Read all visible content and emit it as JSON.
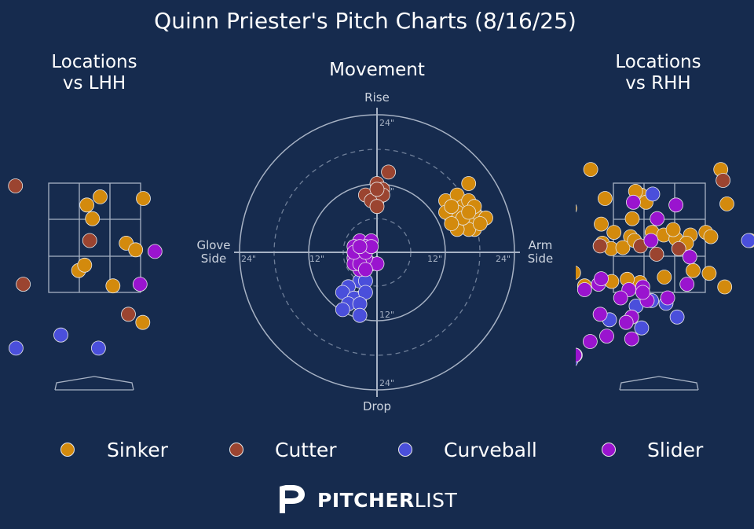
{
  "title": "Quinn Priester's Pitch Charts (8/16/25)",
  "panels": {
    "lhh_title": "Locations\nvs LHH",
    "movement_title": "Movement",
    "rhh_title": "Locations\nvs RHH"
  },
  "movement_axes": {
    "top": "Rise",
    "bottom": "Drop",
    "left": "Glove\nSide",
    "right": "Arm\nSide",
    "tick_labels": [
      "24\"",
      "12\"",
      "12\"",
      "24\"",
      "24\"",
      "12\"",
      "12\"",
      "24\""
    ]
  },
  "colors": {
    "background": "#162b4e",
    "Sinker": "#d38a0d",
    "Cutter": "#9b4430",
    "Curveball": "#4a4fdb",
    "Slider": "#9a14cf"
  },
  "legend": [
    {
      "label": "Sinker",
      "color": "#d38a0d"
    },
    {
      "label": "Cutter",
      "color": "#9b4430"
    },
    {
      "label": "Curveball",
      "color": "#4a4fdb"
    },
    {
      "label": "Slider",
      "color": "#9a14cf"
    }
  ],
  "brand": {
    "bold": "PITCHER",
    "light": "LIST",
    "logo_icon": "pitcherlist-logo-icon"
  },
  "chart_data": [
    {
      "type": "scatter",
      "name": "Locations vs LHH",
      "note": "plate location, x in feet from center (catcher view), z in feet",
      "xlim": [
        -2.0,
        2.0
      ],
      "ylim": [
        0.0,
        5.0
      ],
      "points": {
        "Sinker": [
          [
            0.1,
            3.25
          ],
          [
            0.88,
            3.22
          ],
          [
            -0.04,
            2.85
          ],
          [
            -0.14,
            3.1
          ],
          [
            0.57,
            2.4
          ],
          [
            0.74,
            2.28
          ],
          [
            -0.29,
            1.9
          ],
          [
            -0.18,
            2.0
          ],
          [
            0.33,
            1.62
          ],
          [
            0.87,
            0.95
          ]
        ],
        "Cutter": [
          [
            -1.43,
            3.45
          ],
          [
            -0.09,
            2.45
          ],
          [
            -1.29,
            1.65
          ],
          [
            0.61,
            1.1
          ]
        ],
        "Curveball": [
          [
            -0.61,
            0.72
          ],
          [
            -1.42,
            0.48
          ],
          [
            0.07,
            0.48
          ]
        ],
        "Slider": [
          [
            1.09,
            2.25
          ],
          [
            0.82,
            1.65
          ]
        ]
      }
    },
    {
      "type": "scatter",
      "name": "Movement",
      "note": "horizontal break (arm side +) and induced vertical break, inches",
      "xlim": [
        -24,
        24
      ],
      "ylim": [
        -24,
        24
      ],
      "points": {
        "Sinker": [
          [
            16,
            12
          ],
          [
            12,
            9
          ],
          [
            14,
            10
          ],
          [
            15,
            8
          ],
          [
            17,
            7
          ],
          [
            16,
            9
          ],
          [
            18,
            6
          ],
          [
            13,
            6
          ],
          [
            14,
            7
          ],
          [
            15,
            5
          ],
          [
            17,
            4
          ],
          [
            16,
            5
          ],
          [
            19,
            6
          ],
          [
            12,
            7
          ],
          [
            13,
            8
          ],
          [
            16,
            4
          ],
          [
            14,
            4
          ],
          [
            18,
            5
          ],
          [
            15,
            6
          ],
          [
            17,
            8
          ],
          [
            13,
            5
          ],
          [
            16,
            7
          ]
        ],
        "Cutter": [
          [
            2,
            14
          ],
          [
            0,
            12
          ],
          [
            1,
            11
          ],
          [
            -2,
            10
          ],
          [
            0,
            9
          ],
          [
            -1,
            9
          ],
          [
            1,
            10
          ],
          [
            0,
            8
          ],
          [
            0,
            11
          ]
        ],
        "Curveball": [
          [
            -3,
            -5
          ],
          [
            -5,
            -6
          ],
          [
            -2,
            -5
          ],
          [
            -6,
            -7
          ],
          [
            -3,
            -8
          ],
          [
            -4,
            -8
          ],
          [
            -2,
            -7
          ],
          [
            -5,
            -9
          ],
          [
            -3,
            -9
          ],
          [
            -6,
            -10
          ],
          [
            -3,
            -11
          ]
        ],
        "Slider": [
          [
            -3,
            2
          ],
          [
            -1,
            2
          ],
          [
            -4,
            1
          ],
          [
            -3,
            0
          ],
          [
            -4,
            -1
          ],
          [
            -2,
            1
          ],
          [
            -1,
            -2
          ],
          [
            -3,
            -3
          ],
          [
            -4,
            -2
          ],
          [
            0,
            -2
          ],
          [
            -2,
            -1
          ],
          [
            -3,
            -2
          ],
          [
            -4,
            0
          ],
          [
            -2,
            0
          ],
          [
            -1,
            1
          ],
          [
            -3,
            1
          ],
          [
            -2,
            -3
          ]
        ]
      }
    },
    {
      "type": "scatter",
      "name": "Locations vs RHH",
      "note": "plate location, x in feet from center (catcher view), z in feet",
      "xlim": [
        -2.0,
        2.0
      ],
      "ylim": [
        0.0,
        5.0
      ],
      "points": {
        "Sinker": [
          [
            -1.24,
            3.75
          ],
          [
            1.11,
            3.75
          ],
          [
            -0.98,
            3.22
          ],
          [
            -0.33,
            3.28
          ],
          [
            -0.43,
            3.35
          ],
          [
            -0.24,
            3.15
          ],
          [
            1.22,
            3.12
          ],
          [
            -1.62,
            3.04
          ],
          [
            -0.82,
            2.6
          ],
          [
            -0.13,
            2.6
          ],
          [
            0.08,
            2.55
          ],
          [
            -0.52,
            2.52
          ],
          [
            -0.49,
            2.85
          ],
          [
            -1.05,
            2.75
          ],
          [
            0.3,
            2.48
          ],
          [
            0.56,
            2.55
          ],
          [
            0.84,
            2.6
          ],
          [
            0.49,
            2.4
          ],
          [
            0.93,
            2.52
          ],
          [
            1.64,
            2.45
          ],
          [
            -1.03,
            2.4
          ],
          [
            -0.87,
            2.3
          ],
          [
            -0.66,
            2.32
          ],
          [
            -0.45,
            2.45
          ],
          [
            0.25,
            2.65
          ],
          [
            1.18,
            1.6
          ],
          [
            0.9,
            1.85
          ],
          [
            0.61,
            1.9
          ],
          [
            0.09,
            1.78
          ],
          [
            -0.35,
            1.68
          ],
          [
            -0.58,
            1.74
          ],
          [
            -0.86,
            1.7
          ],
          [
            -1.35,
            1.62
          ],
          [
            -1.55,
            1.86
          ],
          [
            -1.86,
            1.55
          ],
          [
            -1.9,
            1.8
          ]
        ],
        "Cutter": [
          [
            -1.07,
            2.35
          ],
          [
            1.15,
            3.55
          ],
          [
            0.35,
            2.3
          ],
          [
            -0.05,
            2.2
          ],
          [
            -0.34,
            2.35
          ]
        ],
        "Curveball": [
          [
            -0.12,
            3.3
          ],
          [
            1.61,
            2.45
          ],
          [
            -0.42,
            1.25
          ],
          [
            -0.14,
            1.35
          ],
          [
            -1.52,
            0.35
          ],
          [
            -1.6,
            0.25
          ],
          [
            -0.9,
            1.0
          ],
          [
            0.32,
            1.05
          ],
          [
            -0.32,
            0.85
          ],
          [
            0.12,
            1.3
          ]
        ],
        "Slider": [
          [
            -1.1,
            1.65
          ],
          [
            0.3,
            3.1
          ],
          [
            -0.47,
            3.15
          ],
          [
            -0.04,
            2.85
          ],
          [
            -0.15,
            2.45
          ],
          [
            -1.05,
            1.75
          ],
          [
            -1.35,
            1.55
          ],
          [
            -1.82,
            1.7
          ],
          [
            -0.55,
            1.55
          ],
          [
            -0.3,
            1.6
          ],
          [
            -0.7,
            1.4
          ],
          [
            0.55,
            2.15
          ],
          [
            0.15,
            1.4
          ],
          [
            0.5,
            1.65
          ],
          [
            -0.22,
            1.35
          ],
          [
            -0.3,
            1.5
          ],
          [
            -1.07,
            1.1
          ],
          [
            -0.5,
            1.05
          ],
          [
            -1.53,
            0.35
          ],
          [
            -1.95,
            1.0
          ],
          [
            -1.25,
            0.6
          ],
          [
            -0.95,
            0.7
          ],
          [
            -0.5,
            0.65
          ],
          [
            -0.6,
            0.95
          ]
        ]
      }
    }
  ]
}
